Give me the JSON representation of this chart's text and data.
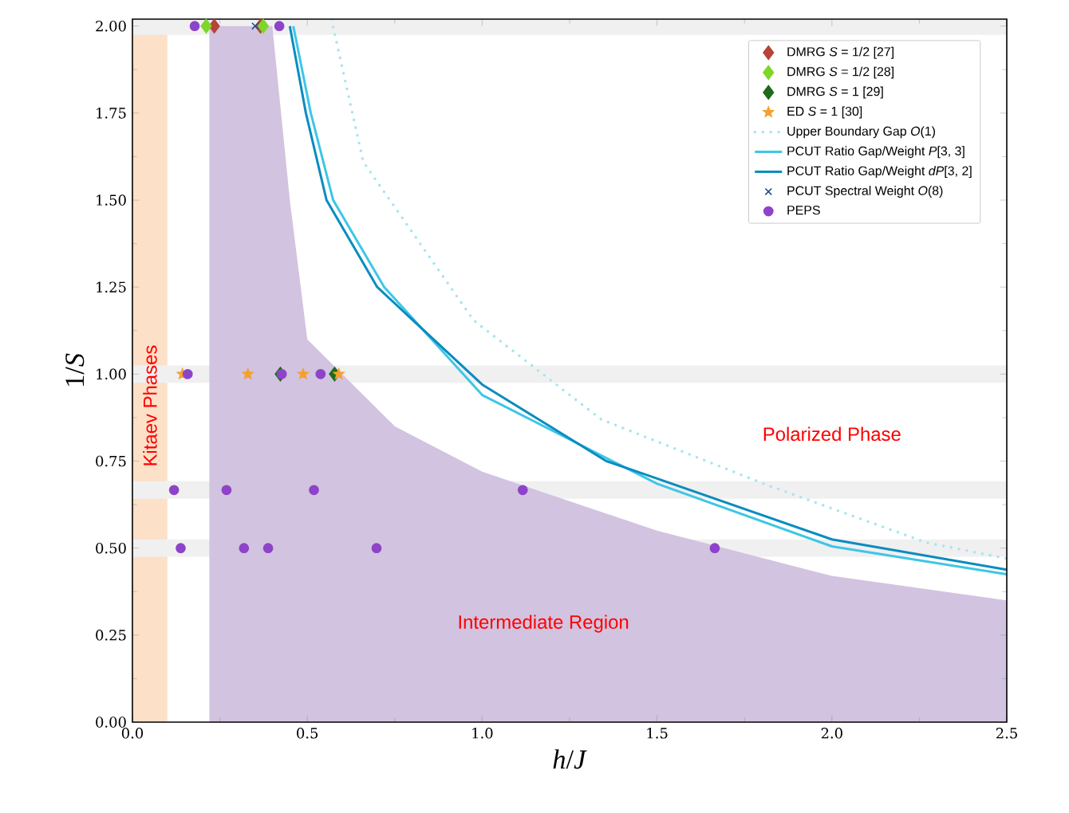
{
  "chart_data": {
    "type": "scatter",
    "xlabel": "*h*/*J*",
    "ylabel": "1/*S*",
    "xlim": [
      0,
      2.5
    ],
    "ylim": [
      0,
      2.02
    ],
    "xticks": [
      {
        "value": 0,
        "label": "0.0"
      },
      0.5,
      {
        "value": 1,
        "label": "1.0"
      },
      1.5,
      {
        "value": 2,
        "label": "2.0"
      },
      2.5
    ],
    "yticks": [
      {
        "value": 0,
        "label": "0.00"
      },
      0.25,
      {
        "value": 0.5,
        "label": "0.50"
      },
      0.75,
      {
        "value": 1,
        "label": "1.00"
      },
      1.25,
      {
        "value": 1.5,
        "label": "1.50"
      },
      1.75,
      {
        "value": 2,
        "label": "2.00"
      }
    ],
    "legend": "top right",
    "bands": [
      {
        "axis": "x",
        "from": 0,
        "to": 0.1,
        "label": "Kitaev Phases",
        "color": "#fde0c8"
      },
      {
        "axis": "y",
        "from": 1.975,
        "to": 2.02,
        "color": "#f0f0f0"
      },
      {
        "axis": "y",
        "from": 0.975,
        "to": 1.025,
        "color": "#f0f0f0"
      },
      {
        "axis": "y",
        "from": 0.642,
        "to": 0.692,
        "color": "#f0f0f0"
      },
      {
        "axis": "y",
        "from": 0.475,
        "to": 0.525,
        "color": "#f0f0f0"
      }
    ],
    "annotations": [
      "Polarized Phase",
      "Intermediate Region"
    ],
    "series": [
      {
        "type": "area",
        "color": "#d2c3e0",
        "x": [
          0.22,
          0.4,
          0.45,
          0.5,
          0.75,
          1.0,
          1.5,
          2.0,
          2.5
        ],
        "values": [
          2.0,
          2.0,
          1.5,
          1.1,
          0.85,
          0.72,
          0.55,
          0.42,
          0.35
        ]
      },
      {
        "name": "DMRG *S* = 1/2 [27]",
        "marker": "diamond",
        "color": "#b5443a",
        "x": [
          0.234,
          0.366
        ],
        "values": [
          2,
          2
        ]
      },
      {
        "name": "DMRG *S* = 1/2 [28]",
        "marker": "diamond",
        "color": "#7fd62a",
        "x": [
          0.211,
          0.374
        ],
        "values": [
          2,
          2
        ]
      },
      {
        "name": "DMRG *S* = 1 [29]",
        "marker": "diamond",
        "color": "#1e6b1e",
        "x": [
          0.423,
          0.578
        ],
        "values": [
          1,
          1
        ]
      },
      {
        "name": "ED *S* = 1 [30]",
        "marker": "star",
        "color": "#f5a030",
        "x": [
          0.143,
          0.33,
          0.488,
          0.59
        ],
        "values": [
          1,
          1,
          1,
          1
        ]
      },
      {
        "name": "Upper Boundary Gap *O*(1)",
        "type": "line",
        "line_style": "dotted",
        "marker": "none",
        "color": "#a8e4f0",
        "x": [
          0.569,
          0.66,
          0.975,
          1.34,
          1.81,
          2.27,
          2.5
        ],
        "values": [
          2.02,
          1.61,
          1.155,
          0.87,
          0.683,
          0.516,
          0.47
        ]
      },
      {
        "name": "PCUT Ratio Gap/Weight *P*[3, 3]",
        "type": "line",
        "line_style": "solid",
        "marker": "none",
        "color": "#3ec6e6",
        "x": [
          0.46,
          0.51,
          0.574,
          0.72,
          1.0,
          1.5,
          2.0,
          2.5
        ],
        "values": [
          2.0,
          1.75,
          1.5,
          1.25,
          0.94,
          0.685,
          0.505,
          0.425
        ]
      },
      {
        "name": "PCUT Ratio Gap/Weight *dP*[3, 2]",
        "type": "line",
        "line_style": "solid",
        "marker": "none",
        "color": "#0a8cc0",
        "x": [
          0.45,
          0.496,
          0.555,
          0.7,
          1.0,
          1.355,
          1.5,
          2.0,
          2.5
        ],
        "values": [
          2.0,
          1.75,
          1.5,
          1.25,
          0.97,
          0.75,
          0.7,
          0.525,
          0.438
        ]
      },
      {
        "name": "PCUT Spectral Weight *O*(8)",
        "marker": "cross",
        "color": "#1f4e8c",
        "x": [
          0.351
        ],
        "values": [
          2
        ]
      },
      {
        "name": "PEPS",
        "marker": "circle",
        "color": "#8e44c8",
        "x": [
          0.178,
          0.42,
          0.158,
          0.427,
          0.538,
          0.119,
          0.269,
          0.519,
          1.116,
          0.138,
          0.319,
          0.388,
          0.698,
          1.665
        ],
        "values": [
          2,
          2,
          1,
          1,
          1,
          0.667,
          0.667,
          0.667,
          0.667,
          0.5,
          0.5,
          0.5,
          0.5,
          0.5
        ]
      }
    ]
  }
}
